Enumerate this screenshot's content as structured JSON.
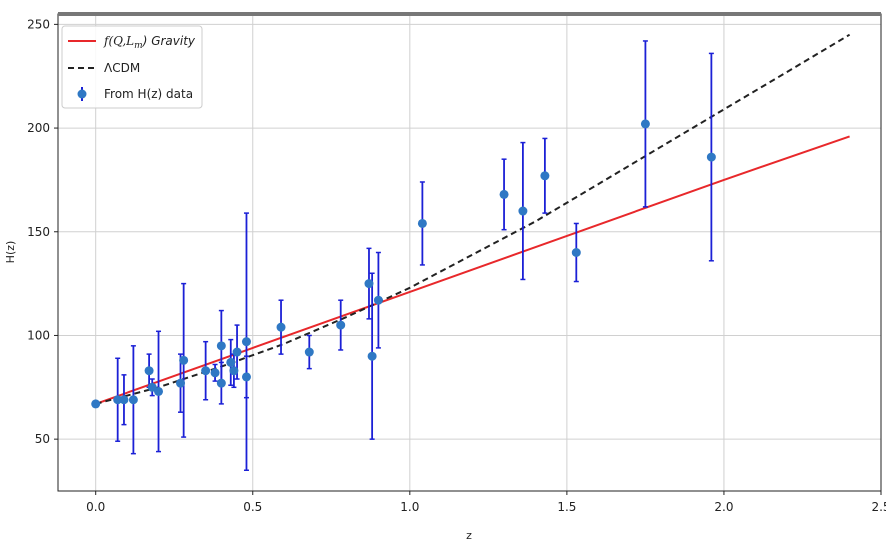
{
  "chart_data": {
    "type": "scatter",
    "xlabel": "z",
    "ylabel": "H(z)",
    "xlim": [
      -0.12,
      2.5
    ],
    "ylim": [
      25,
      255
    ],
    "xticks": [
      0.0,
      0.5,
      1.0,
      1.5,
      2.0,
      2.5
    ],
    "xtick_labels": [
      "0.0",
      "0.5",
      "1.0",
      "1.5",
      "2.0",
      "2.5"
    ],
    "yticks": [
      50,
      100,
      150,
      200,
      250
    ],
    "ytick_labels": [
      "50",
      "100",
      "150",
      "200",
      "250"
    ],
    "grid": true,
    "legend_position": "top-left",
    "series": [
      {
        "name": "f(Q,L_m) Gravity",
        "name_main": "f(Q,L",
        "name_sub": "m",
        "name_tail": ") Gravity",
        "kind": "line",
        "color": "#e8282b",
        "style": "solid",
        "x": [
          0.0,
          0.5,
          1.0,
          1.5,
          2.0,
          2.4
        ],
        "y": [
          67,
          94,
          121,
          148,
          175,
          196
        ]
      },
      {
        "name": "ΛCDM",
        "kind": "line",
        "color": "#222222",
        "style": "dashed",
        "x": [
          0.0,
          0.2,
          0.4,
          0.6,
          0.8,
          1.0,
          1.2,
          1.4,
          1.6,
          1.8,
          2.0,
          2.2,
          2.4
        ],
        "y": [
          67,
          75,
          85,
          96,
          109,
          123,
          139,
          155,
          173,
          191,
          209,
          227,
          245
        ]
      },
      {
        "name": "From H(z) data",
        "kind": "errorbar",
        "marker_color": "#2f78c4",
        "errorbar_color": "#1b20d6",
        "points": [
          {
            "x": 0.0,
            "y": 67,
            "err": 1
          },
          {
            "x": 0.07,
            "y": 69,
            "err": 20
          },
          {
            "x": 0.09,
            "y": 69,
            "err": 12
          },
          {
            "x": 0.12,
            "y": 69,
            "err": 26
          },
          {
            "x": 0.17,
            "y": 83,
            "err": 8
          },
          {
            "x": 0.18,
            "y": 75,
            "err": 4
          },
          {
            "x": 0.2,
            "y": 73,
            "err": 29
          },
          {
            "x": 0.27,
            "y": 77,
            "err": 14
          },
          {
            "x": 0.28,
            "y": 88,
            "err": 37
          },
          {
            "x": 0.35,
            "y": 83,
            "err": 14
          },
          {
            "x": 0.38,
            "y": 82,
            "err": 4
          },
          {
            "x": 0.4,
            "y": 95,
            "err": 17
          },
          {
            "x": 0.4,
            "y": 77,
            "err": 10
          },
          {
            "x": 0.43,
            "y": 87,
            "err": 11
          },
          {
            "x": 0.44,
            "y": 83,
            "err": 8
          },
          {
            "x": 0.45,
            "y": 92,
            "err": 13
          },
          {
            "x": 0.48,
            "y": 97,
            "err": 62
          },
          {
            "x": 0.48,
            "y": 80,
            "err": 10
          },
          {
            "x": 0.59,
            "y": 104,
            "err": 13
          },
          {
            "x": 0.68,
            "y": 92,
            "err": 8
          },
          {
            "x": 0.78,
            "y": 105,
            "err": 12
          },
          {
            "x": 0.87,
            "y": 125,
            "err": 17
          },
          {
            "x": 0.88,
            "y": 90,
            "err": 40
          },
          {
            "x": 0.9,
            "y": 117,
            "err": 23
          },
          {
            "x": 1.04,
            "y": 154,
            "err": 20
          },
          {
            "x": 1.3,
            "y": 168,
            "err": 17
          },
          {
            "x": 1.36,
            "y": 160,
            "err": 33
          },
          {
            "x": 1.43,
            "y": 177,
            "err": 18
          },
          {
            "x": 1.53,
            "y": 140,
            "err": 14
          },
          {
            "x": 1.75,
            "y": 202,
            "err": 40
          },
          {
            "x": 1.96,
            "y": 186,
            "err": 50
          }
        ]
      }
    ]
  }
}
